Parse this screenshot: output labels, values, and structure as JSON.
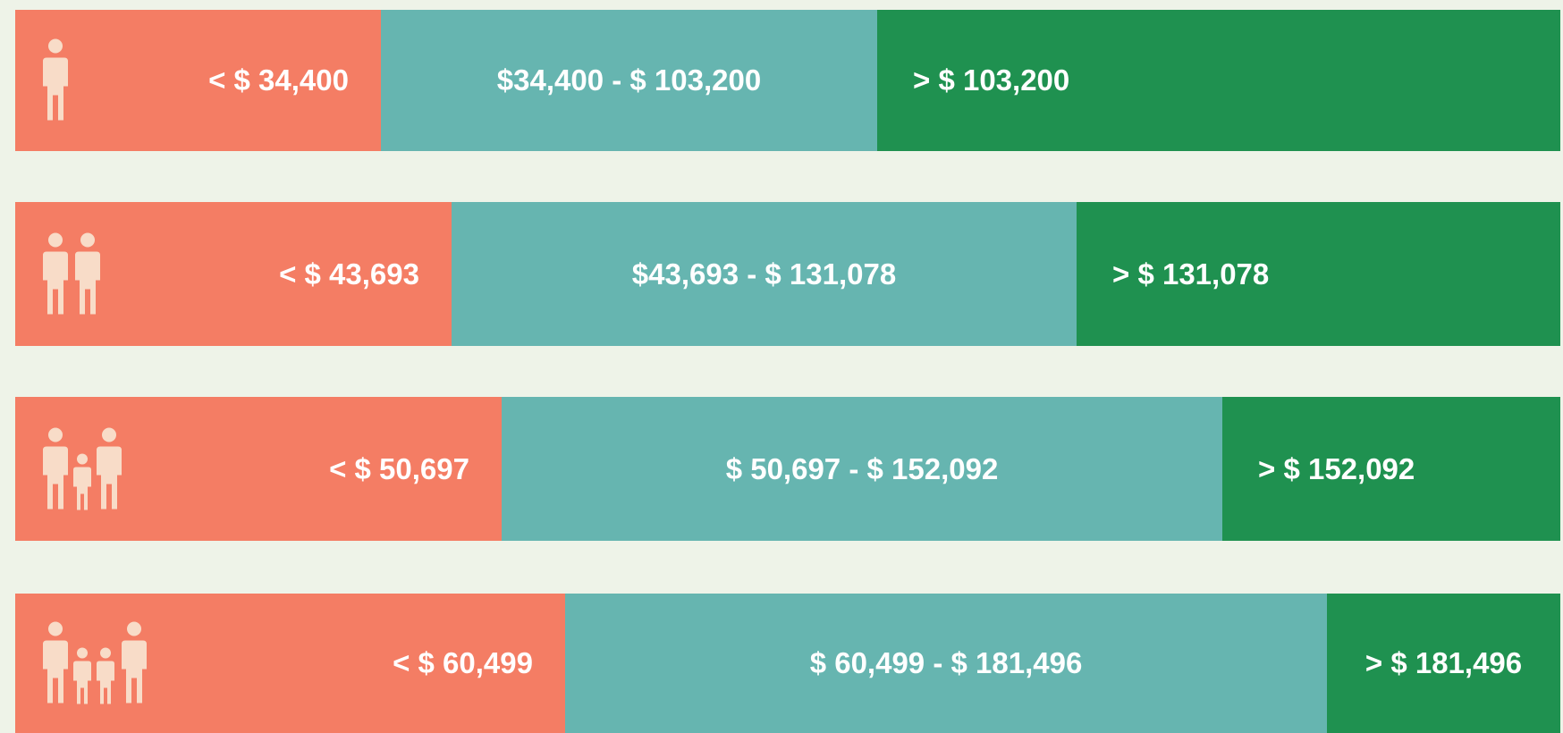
{
  "rows": [
    {
      "low": "< $ 34,400",
      "middle": "$34,400 - $ 103,200",
      "high": "> $ 103,200"
    },
    {
      "low": "< $ 43,693",
      "middle": "$43,693 - $ 131,078",
      "high": "> $ 131,078"
    },
    {
      "low": "< $ 50,697",
      "middle": "$ 50,697 - $ 152,092",
      "high": "> $ 152,092"
    },
    {
      "low": "< $ 60,499",
      "middle": "$ 60,499 - $ 181,496",
      "high": "> $ 181,496"
    }
  ]
}
